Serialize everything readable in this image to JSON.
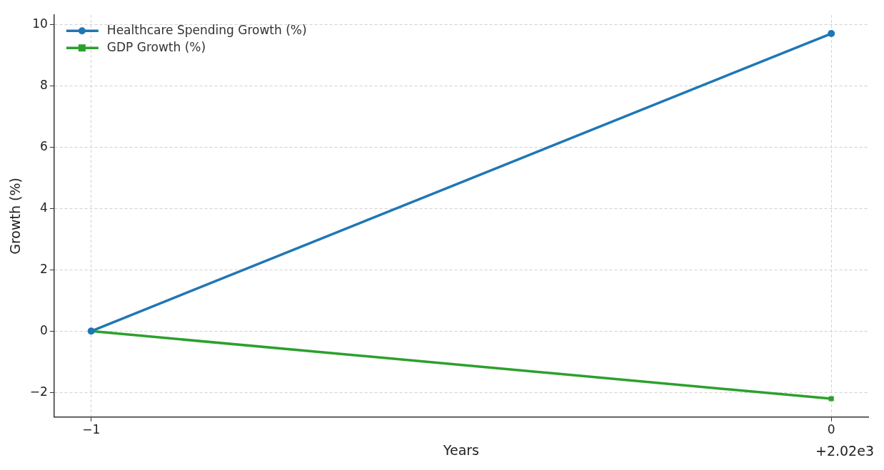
{
  "chart_data": {
    "type": "line",
    "xlabel": "Years",
    "ylabel": "Growth (%)",
    "x": [
      -1,
      0
    ],
    "series": [
      {
        "name": "Healthcare Spending Growth (%)",
        "color": "#1f77b4",
        "values": [
          0,
          9.7
        ],
        "marker": "circle"
      },
      {
        "name": "GDP Growth (%)",
        "color": "#2ca02c",
        "values": [
          0,
          -2.2
        ],
        "marker": "square"
      }
    ],
    "xlim": [
      -1.05,
      0.05
    ],
    "xticks": [
      {
        "value": -1,
        "label": "−1"
      },
      0
    ],
    "ylim": [
      -2.8,
      10.3
    ],
    "yticks": [
      {
        "value": -2,
        "label": "−2"
      },
      0,
      2,
      4,
      6,
      8,
      10
    ],
    "grid": true,
    "legend": "top left",
    "line_style": "solid",
    "annotations": [
      "+2.02e3"
    ]
  }
}
